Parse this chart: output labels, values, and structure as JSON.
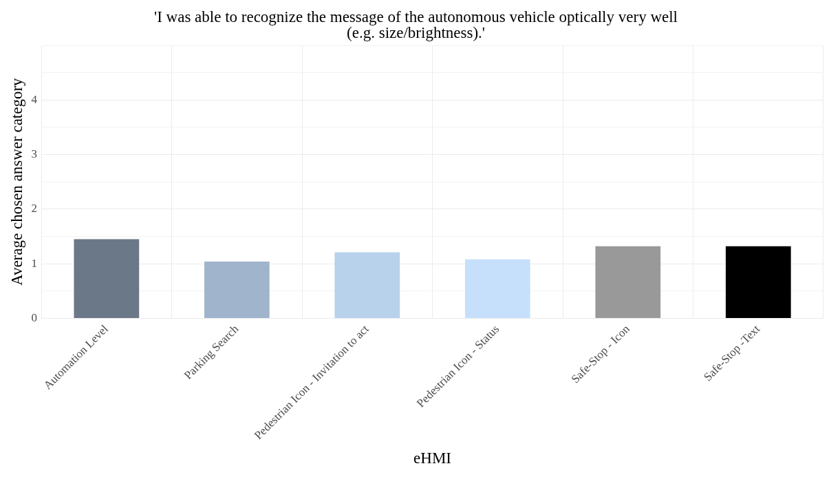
{
  "chart_data": {
    "type": "bar",
    "title": "'I was able to recognize the message of the autonomous vehicle optically very well\n(e.g. size/brightness).'",
    "xlabel": "eHMI",
    "ylabel": "Average chosen answer category",
    "categories": [
      "Automation Level",
      "Parking Search",
      "Pedestrian Icon - Invitation to act",
      "Pedestrian Icon - Status",
      "Safe-Stop - Icon",
      "Safe-Stop -Text"
    ],
    "values": [
      1.45,
      1.04,
      1.21,
      1.08,
      1.32,
      1.32
    ],
    "colors": [
      "#6b7888",
      "#a0b4cc",
      "#b8d2ec",
      "#c6e0fc",
      "#999999",
      "#000000"
    ],
    "ylim": [
      0,
      5
    ],
    "yticks": [
      0,
      {
        "value": 0.5,
        "label": null
      },
      1,
      {
        "value": 1.5,
        "label": null
      },
      2,
      {
        "value": 2.5,
        "label": null
      },
      3,
      {
        "value": 3.5,
        "label": null
      },
      4,
      {
        "value": 4.5,
        "label": null
      },
      {
        "value": 5,
        "label": null
      }
    ],
    "grid": true,
    "legend": false
  }
}
